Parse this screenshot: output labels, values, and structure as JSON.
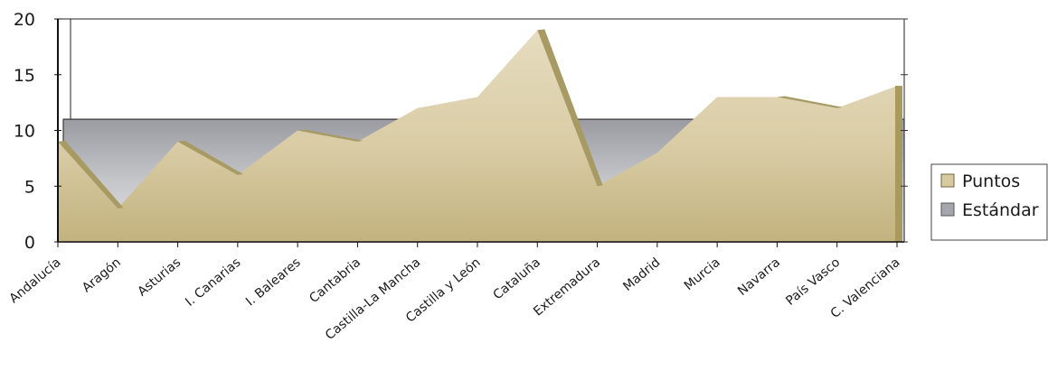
{
  "chart_data": {
    "type": "area",
    "categories": [
      "Andalucía",
      "Aragón",
      "Asturias",
      "I. Canarias",
      "I. Baleares",
      "Cantabria",
      "Castilla-La Mancha",
      "Castilla y León",
      "Cataluña",
      "Extremadura",
      "Madrid",
      "Murcia",
      "Navarra",
      "País Vasco",
      "C. Valenciana"
    ],
    "series": [
      {
        "name": "Puntos",
        "values": [
          9,
          3,
          9,
          6,
          10,
          9,
          12,
          13,
          19,
          5,
          8,
          13,
          13,
          12,
          14
        ],
        "color": "#cfc298"
      },
      {
        "name": "Estándar",
        "values": [
          11,
          11,
          11,
          11,
          11,
          11,
          11,
          11,
          11,
          11,
          11,
          11,
          11,
          11,
          11
        ],
        "color": "#a7a8ad"
      }
    ],
    "ylim": [
      0,
      20
    ],
    "yticks": [
      0,
      5,
      10,
      15,
      20
    ],
    "legend_position": "right",
    "grid": false
  }
}
